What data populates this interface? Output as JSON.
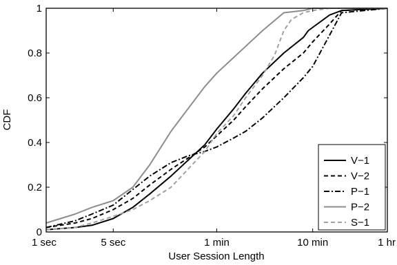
{
  "chart_data": {
    "type": "line",
    "title": "",
    "xlabel": "User Session Length",
    "ylabel": "CDF",
    "x_scale": "log",
    "x_unit": "seconds",
    "xlim": [
      1,
      3600
    ],
    "ylim": [
      0,
      1
    ],
    "grid": false,
    "legend_position": "bottom-right",
    "x_ticks": [
      {
        "value": 1,
        "label": "1 sec"
      },
      {
        "value": 5,
        "label": "5 sec"
      },
      {
        "value": 60,
        "label": "1 min"
      },
      {
        "value": 600,
        "label": "10 min"
      },
      {
        "value": 3600,
        "label": "1 hr"
      }
    ],
    "y_ticks": [
      {
        "value": 0,
        "label": "0"
      },
      {
        "value": 0.2,
        "label": "0.2"
      },
      {
        "value": 0.4,
        "label": "0.4"
      },
      {
        "value": 0.6,
        "label": "0.6"
      },
      {
        "value": 0.8,
        "label": "0.8"
      },
      {
        "value": 1,
        "label": "1"
      }
    ],
    "series": [
      {
        "name": "V−1",
        "color": "#000000",
        "dash": "solid",
        "points": [
          [
            1,
            0.01
          ],
          [
            2,
            0.02
          ],
          [
            3,
            0.03
          ],
          [
            5,
            0.06
          ],
          [
            8,
            0.11
          ],
          [
            12,
            0.17
          ],
          [
            20,
            0.25
          ],
          [
            30,
            0.32
          ],
          [
            45,
            0.39
          ],
          [
            60,
            0.46
          ],
          [
            90,
            0.55
          ],
          [
            120,
            0.62
          ],
          [
            180,
            0.71
          ],
          [
            300,
            0.8
          ],
          [
            420,
            0.85
          ],
          [
            480,
            0.87
          ],
          [
            540,
            0.9
          ],
          [
            900,
            0.97
          ],
          [
            1200,
            0.99
          ],
          [
            3600,
            1.0
          ]
        ]
      },
      {
        "name": "V−2",
        "color": "#000000",
        "dash": "dashed",
        "points": [
          [
            1,
            0.02
          ],
          [
            2,
            0.04
          ],
          [
            3,
            0.06
          ],
          [
            5,
            0.1
          ],
          [
            8,
            0.15
          ],
          [
            12,
            0.21
          ],
          [
            20,
            0.28
          ],
          [
            30,
            0.33
          ],
          [
            45,
            0.38
          ],
          [
            60,
            0.43
          ],
          [
            90,
            0.5
          ],
          [
            120,
            0.56
          ],
          [
            180,
            0.64
          ],
          [
            300,
            0.73
          ],
          [
            480,
            0.8
          ],
          [
            600,
            0.85
          ],
          [
            900,
            0.93
          ],
          [
            1200,
            0.99
          ],
          [
            3600,
            1.0
          ]
        ]
      },
      {
        "name": "P−1",
        "color": "#000000",
        "dash": "dashdot",
        "points": [
          [
            1,
            0.02
          ],
          [
            2,
            0.05
          ],
          [
            3,
            0.08
          ],
          [
            5,
            0.12
          ],
          [
            8,
            0.19
          ],
          [
            12,
            0.25
          ],
          [
            20,
            0.31
          ],
          [
            30,
            0.34
          ],
          [
            45,
            0.36
          ],
          [
            60,
            0.38
          ],
          [
            90,
            0.42
          ],
          [
            120,
            0.45
          ],
          [
            180,
            0.51
          ],
          [
            300,
            0.6
          ],
          [
            480,
            0.69
          ],
          [
            600,
            0.74
          ],
          [
            900,
            0.88
          ],
          [
            1200,
            0.98
          ],
          [
            3600,
            1.0
          ]
        ]
      },
      {
        "name": "P−2",
        "color": "#8c8c8c",
        "dash": "solid",
        "points": [
          [
            1,
            0.04
          ],
          [
            2,
            0.08
          ],
          [
            3,
            0.11
          ],
          [
            5,
            0.14
          ],
          [
            8,
            0.2
          ],
          [
            12,
            0.3
          ],
          [
            20,
            0.45
          ],
          [
            30,
            0.55
          ],
          [
            45,
            0.65
          ],
          [
            60,
            0.71
          ],
          [
            90,
            0.78
          ],
          [
            120,
            0.83
          ],
          [
            180,
            0.9
          ],
          [
            300,
            0.98
          ],
          [
            480,
            0.99
          ],
          [
            600,
            1.0
          ],
          [
            3600,
            1.0
          ]
        ]
      },
      {
        "name": "S−1",
        "color": "#a0a0a0",
        "dash": "dashed",
        "points": [
          [
            1,
            0.01
          ],
          [
            2,
            0.02
          ],
          [
            3,
            0.04
          ],
          [
            5,
            0.07
          ],
          [
            8,
            0.1
          ],
          [
            12,
            0.14
          ],
          [
            20,
            0.2
          ],
          [
            30,
            0.28
          ],
          [
            45,
            0.36
          ],
          [
            60,
            0.44
          ],
          [
            90,
            0.52
          ],
          [
            120,
            0.6
          ],
          [
            180,
            0.7
          ],
          [
            240,
            0.79
          ],
          [
            300,
            0.9
          ],
          [
            360,
            0.95
          ],
          [
            480,
            0.98
          ],
          [
            600,
            0.99
          ],
          [
            900,
            1.0
          ],
          [
            3600,
            1.0
          ]
        ]
      }
    ]
  }
}
